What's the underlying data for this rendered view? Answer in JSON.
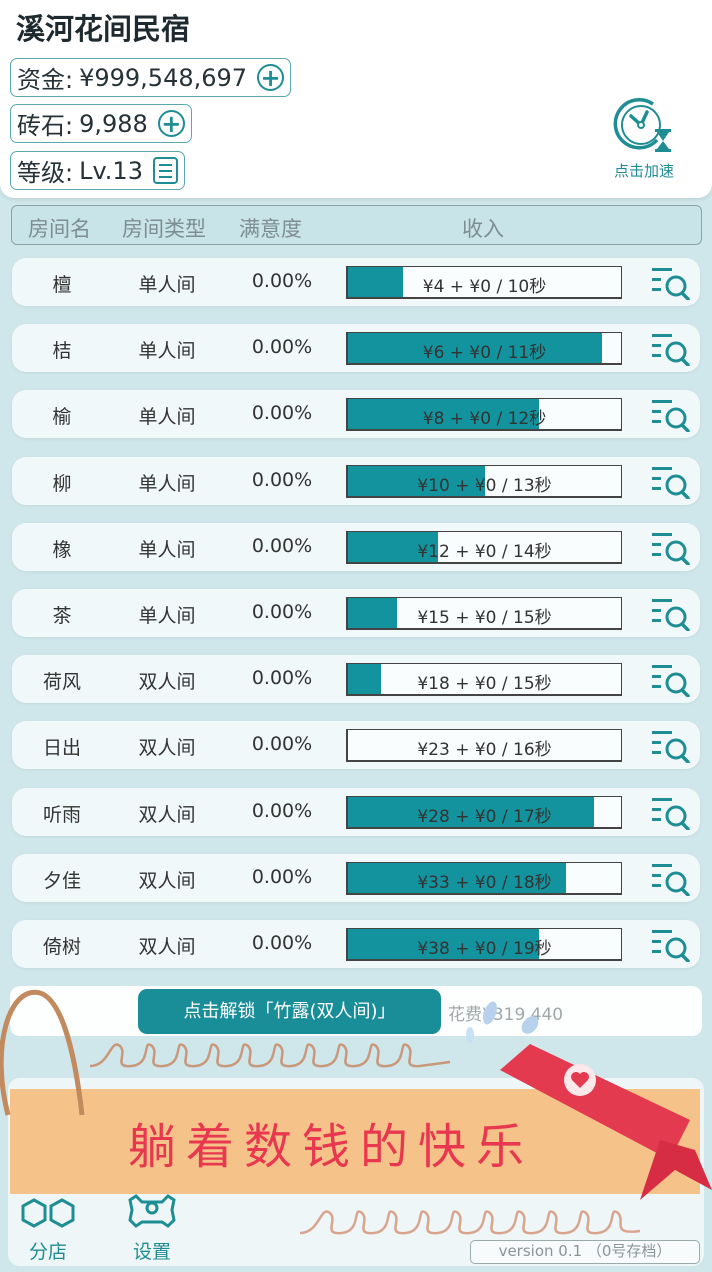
{
  "header": {
    "title": "溪河花间民宿",
    "funds": {
      "label": "资金:",
      "value": "¥999,548,697",
      "action_icon": "plus-circle-icon"
    },
    "bricks": {
      "label": "砖石:",
      "value": "9,988",
      "action_icon": "plus-circle-icon"
    },
    "level": {
      "label": "等级:",
      "value": "Lv.13",
      "action_icon": "list-icon"
    },
    "speed_up": {
      "label": "点击加速",
      "icon": "clock-hourglass-icon"
    }
  },
  "table": {
    "columns": [
      "房间名",
      "房间类型",
      "满意度",
      "收入"
    ],
    "rows": [
      {
        "name": "檀",
        "type": "单人间",
        "satisfaction": "0.00%",
        "income": "¥4 + ¥0 / 10秒",
        "progress": 20
      },
      {
        "name": "桔",
        "type": "单人间",
        "satisfaction": "0.00%",
        "income": "¥6 + ¥0 / 11秒",
        "progress": 93
      },
      {
        "name": "榆",
        "type": "单人间",
        "satisfaction": "0.00%",
        "income": "¥8 + ¥0 / 12秒",
        "progress": 70
      },
      {
        "name": "柳",
        "type": "单人间",
        "satisfaction": "0.00%",
        "income": "¥10 + ¥0 / 13秒",
        "progress": 50
      },
      {
        "name": "橡",
        "type": "单人间",
        "satisfaction": "0.00%",
        "income": "¥12 + ¥0 / 14秒",
        "progress": 33
      },
      {
        "name": "茶",
        "type": "单人间",
        "satisfaction": "0.00%",
        "income": "¥15 + ¥0 / 15秒",
        "progress": 18
      },
      {
        "name": "荷风",
        "type": "双人间",
        "satisfaction": "0.00%",
        "income": "¥18 + ¥0 / 15秒",
        "progress": 12
      },
      {
        "name": "日出",
        "type": "双人间",
        "satisfaction": "0.00%",
        "income": "¥23 + ¥0 / 16秒",
        "progress": 0
      },
      {
        "name": "听雨",
        "type": "双人间",
        "satisfaction": "0.00%",
        "income": "¥28 + ¥0 / 17秒",
        "progress": 90
      },
      {
        "name": "夕佳",
        "type": "双人间",
        "satisfaction": "0.00%",
        "income": "¥33 + ¥0 / 18秒",
        "progress": 80
      },
      {
        "name": "倚树",
        "type": "双人间",
        "satisfaction": "0.00%",
        "income": "¥38 + ¥0 / 19秒",
        "progress": 70
      }
    ]
  },
  "unlock": {
    "button_label": "点击解锁「竹露(双人间)」",
    "cost": "花费¥319,440"
  },
  "bottom_nav": {
    "items": [
      {
        "label": "分店",
        "icon": "hexagons-icon"
      },
      {
        "label": "设置",
        "icon": "gear-icon"
      }
    ],
    "version": "version 0.1 （0号存档）"
  },
  "promo_banner": {
    "text": "躺着数钱的快乐"
  },
  "colors": {
    "accent": "#12939d",
    "background": "#cfe7ea",
    "banner": "#f5c28a",
    "banner_text": "#e8384f",
    "ribbon": "#e33a50"
  }
}
